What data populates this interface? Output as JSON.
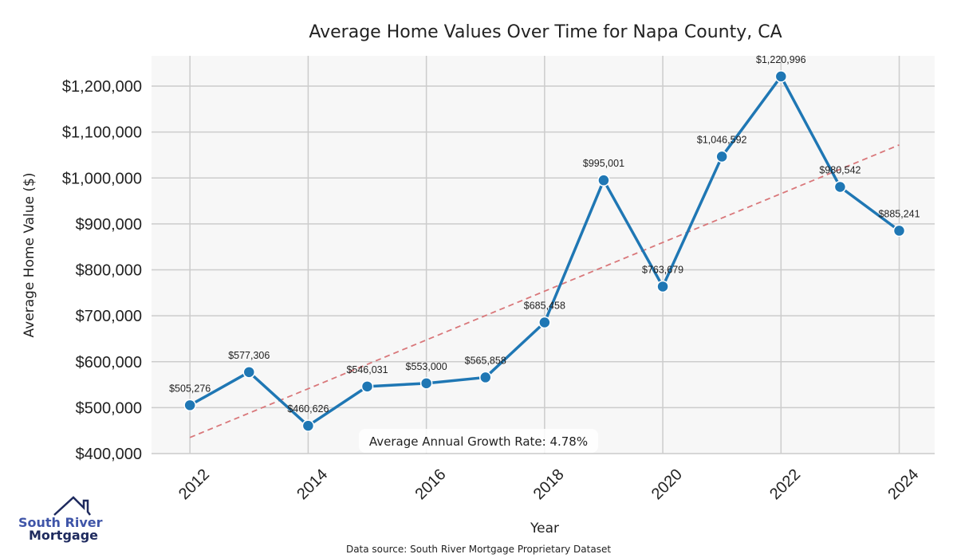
{
  "chart_data": {
    "type": "line",
    "title": "Average Home Values Over Time for Napa County, CA",
    "xlabel": "Year",
    "ylabel": "Average Home Value ($)",
    "x": [
      2012,
      2013,
      2014,
      2015,
      2016,
      2017,
      2018,
      2019,
      2020,
      2021,
      2022,
      2023,
      2024
    ],
    "series": [
      {
        "name": "Average Home Value",
        "values": [
          505276,
          577306,
          460626,
          546031,
          553000,
          565858,
          685458,
          995001,
          763679,
          1046592,
          1220996,
          980542,
          885241
        ]
      }
    ],
    "data_labels": [
      "$505,276",
      "$577,306",
      "$460,626",
      "$546,031",
      "$553,000",
      "$565,858",
      "$685,458",
      "$995,001",
      "$763,679",
      "$1,046,592",
      "$1,220,996",
      "$980,542",
      "$885,241"
    ],
    "trendline": {
      "start": [
        2012,
        435000
      ],
      "end": [
        2024,
        1072000
      ],
      "style": "dashed"
    },
    "xticks": [
      "2012",
      "2014",
      "2016",
      "2018",
      "2020",
      "2022",
      "2024"
    ],
    "yticks": [
      400000,
      500000,
      600000,
      700000,
      800000,
      900000,
      1000000,
      1100000,
      1200000
    ],
    "ytick_labels": [
      "$400,000",
      "$500,000",
      "$600,000",
      "$700,000",
      "$800,000",
      "$900,000",
      "$1,000,000",
      "$1,100,000",
      "$1,200,000"
    ],
    "xlim": [
      2011.35,
      2024.6
    ],
    "ylim": [
      400000,
      1266000
    ],
    "grid": true,
    "annotation": "Average Annual Growth Rate: 4.78%",
    "colors": {
      "line": "#1f77b4",
      "trend": "#d9777a",
      "plot_bg": "#f7f7f7",
      "grid": "#cccccc"
    }
  },
  "source": "Data source: South River Mortgage Proprietary Dataset",
  "logo": {
    "line1": "South River",
    "line2": "Mortgage"
  }
}
